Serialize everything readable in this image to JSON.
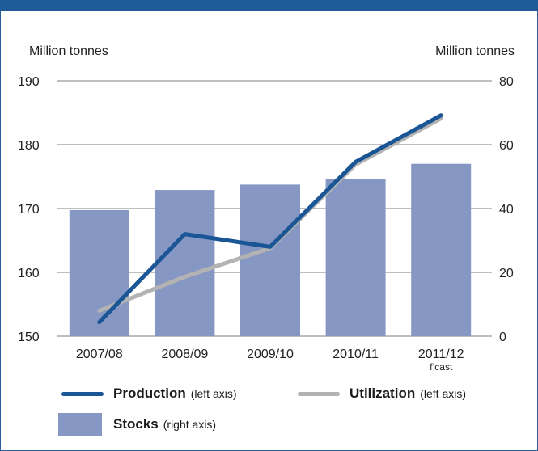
{
  "chart_data": {
    "type": "bar+line",
    "categories": [
      "2007/08",
      "2008/09",
      "2009/10",
      "2010/11",
      "2011/12"
    ],
    "category_sublabels": [
      "",
      "",
      "",
      "",
      "f’cast"
    ],
    "left_axis": {
      "label": "Million tonnes",
      "min": 150,
      "max": 190,
      "ticks": [
        "150",
        "160",
        "170",
        "180",
        "190"
      ]
    },
    "right_axis": {
      "label": "Million tonnes",
      "min": 0,
      "max": 80,
      "ticks": [
        "0",
        "20",
        "40",
        "60",
        "80"
      ]
    },
    "series": [
      {
        "name": "Stocks",
        "note": "(right axis)",
        "type": "bar",
        "axis": "right",
        "color": "#8797c4",
        "values": [
          39.5,
          45.8,
          47.5,
          49.2,
          54.0
        ]
      },
      {
        "name": "Production",
        "note": "(left axis)",
        "type": "line",
        "axis": "left",
        "color": "#1a5596",
        "values": [
          152.2,
          166.0,
          164.0,
          177.3,
          184.6
        ]
      },
      {
        "name": "Utilization",
        "note": "(left axis)",
        "type": "line",
        "axis": "left",
        "color": "#b3b3b3",
        "values": [
          154.0,
          159.3,
          163.8,
          176.9,
          184.1
        ]
      }
    ],
    "grid": true
  }
}
